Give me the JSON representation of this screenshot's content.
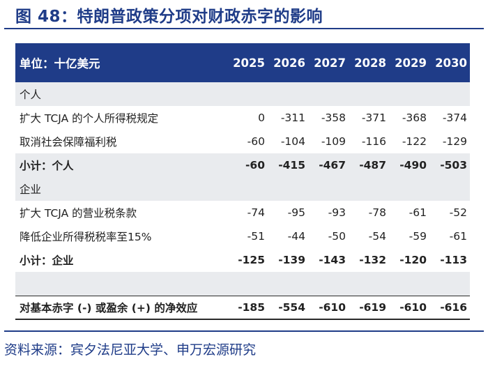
{
  "title": "图 48：特朗普政策分项对财政赤字的影响",
  "source": "资料来源：宾夕法尼亚大学、申万宏源研究",
  "table": {
    "unit_label": "单位：十亿美元",
    "years": [
      "2025",
      "2026",
      "2027",
      "2028",
      "2029",
      "2030"
    ],
    "section_individual": "个人",
    "rows_individual": [
      {
        "label": "扩大 TCJA 的个人所得税规定",
        "values": [
          "0",
          "-311",
          "-358",
          "-371",
          "-368",
          "-374"
        ]
      },
      {
        "label": "取消社会保障福利税",
        "values": [
          "-60",
          "-104",
          "-109",
          "-116",
          "-122",
          "-129"
        ]
      }
    ],
    "subtotal_individual": {
      "label": "小计：个人",
      "values": [
        "-60",
        "-415",
        "-467",
        "-487",
        "-490",
        "-503"
      ]
    },
    "section_corporate": "企业",
    "rows_corporate": [
      {
        "label": "扩大 TCJA 的营业税条款",
        "values": [
          "-74",
          "-95",
          "-93",
          "-78",
          "-61",
          "-52"
        ]
      },
      {
        "label": "降低企业所得税税率至15%",
        "values": [
          "-51",
          "-44",
          "-50",
          "-54",
          "-59",
          "-61"
        ]
      }
    ],
    "subtotal_corporate": {
      "label": "小计：企业",
      "values": [
        "-125",
        "-139",
        "-143",
        "-132",
        "-120",
        "-113"
      ]
    },
    "total": {
      "label": "对基本赤字 (-) 或盈余 (+) 的净效应",
      "values": [
        "-185",
        "-554",
        "-610",
        "-619",
        "-610",
        "-616"
      ]
    }
  }
}
